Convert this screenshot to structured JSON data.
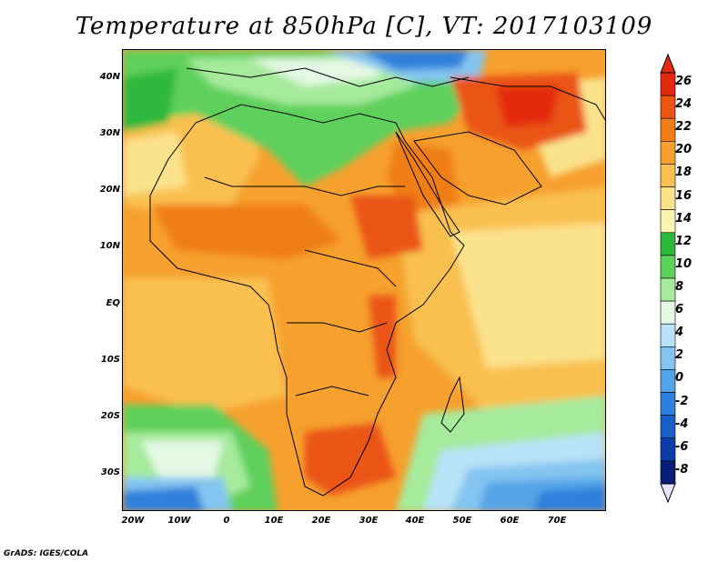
{
  "title": "Temperature at 850hPa [C], VT: 2017103109",
  "credit": "GrADS: IGES/COLA",
  "y_axis": [
    "40N",
    "30N",
    "20N",
    "10N",
    "EQ",
    "10S",
    "20S",
    "30S"
  ],
  "x_axis": [
    "20W",
    "10W",
    "0",
    "10E",
    "20E",
    "30E",
    "40E",
    "50E",
    "60E",
    "70E"
  ],
  "colorbar": {
    "labels": [
      "26",
      "24",
      "22",
      "20",
      "18",
      "16",
      "14",
      "12",
      "10",
      "8",
      "6",
      "4",
      "2",
      "0",
      "-2",
      "-4",
      "-6",
      "-8"
    ],
    "colors": [
      "#e32a10",
      "#ea5514",
      "#f07e14",
      "#f6a02e",
      "#f9c050",
      "#fbe28c",
      "#fcf3b0",
      "#2db83d",
      "#5fd05c",
      "#a6ea9c",
      "#e4f8e4",
      "#b8e2f8",
      "#84c4f0",
      "#54a4e8",
      "#2e80dc",
      "#1a5ec8",
      "#0e3ca8",
      "#0a1e78"
    ]
  }
}
